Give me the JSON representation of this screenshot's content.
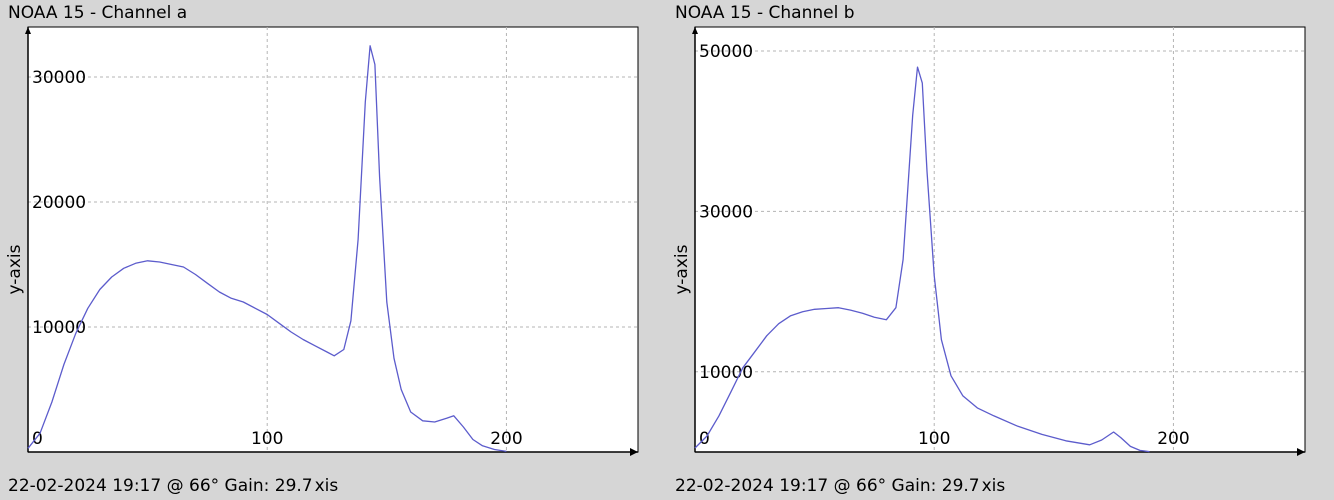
{
  "panels": [
    {
      "title": "NOAA 15 - Channel a",
      "footer": "22-02-2024 19:17 @ 66° Gain: 29.7",
      "footer_overlap": "xis"
    },
    {
      "title": "NOAA 15 - Channel b",
      "footer": "22-02-2024 19:17 @ 66° Gain: 29.7",
      "footer_overlap": "xis"
    }
  ],
  "chart_data": [
    {
      "type": "line",
      "title": "NOAA 15 - Channel a",
      "xlabel": "",
      "ylabel": "y-axis",
      "xlim": [
        0,
        255
      ],
      "ylim": [
        0,
        34000
      ],
      "xticks": [
        0,
        100,
        200
      ],
      "yticks": [
        10000,
        20000,
        30000
      ],
      "grid": true,
      "series": [
        {
          "color": "#5c5ccc",
          "x": [
            0,
            5,
            10,
            15,
            20,
            25,
            30,
            35,
            40,
            45,
            50,
            55,
            60,
            65,
            70,
            75,
            80,
            85,
            90,
            95,
            100,
            105,
            110,
            115,
            120,
            125,
            128,
            132,
            135,
            138,
            141,
            143,
            145,
            147,
            150,
            153,
            156,
            160,
            165,
            170,
            175,
            178,
            182,
            186,
            190,
            195,
            200
          ],
          "y": [
            300,
            1500,
            4000,
            7000,
            9500,
            11500,
            13000,
            14000,
            14700,
            15100,
            15300,
            15200,
            15000,
            14800,
            14200,
            13500,
            12800,
            12300,
            12000,
            11500,
            11000,
            10300,
            9600,
            9000,
            8500,
            8000,
            7700,
            8200,
            10500,
            17000,
            28000,
            32500,
            31000,
            22000,
            12000,
            7500,
            5000,
            3200,
            2500,
            2400,
            2700,
            2900,
            2000,
            1000,
            500,
            200,
            50
          ]
        }
      ]
    },
    {
      "type": "line",
      "title": "NOAA 15 - Channel b",
      "xlabel": "",
      "ylabel": "y-axis",
      "xlim": [
        0,
        255
      ],
      "ylim": [
        0,
        53000
      ],
      "xticks": [
        0,
        100,
        200
      ],
      "yticks": [
        10000,
        30000,
        50000
      ],
      "grid": true,
      "series": [
        {
          "color": "#5c5ccc",
          "x": [
            0,
            5,
            10,
            15,
            20,
            25,
            30,
            35,
            40,
            45,
            50,
            55,
            60,
            65,
            70,
            75,
            80,
            84,
            87,
            89,
            91,
            93,
            95,
            97,
            100,
            103,
            107,
            112,
            118,
            125,
            135,
            145,
            155,
            165,
            170,
            175,
            178,
            182,
            186,
            190
          ],
          "y": [
            500,
            2000,
            4500,
            7500,
            10500,
            12500,
            14500,
            16000,
            17000,
            17500,
            17800,
            17900,
            18000,
            17700,
            17300,
            16800,
            16500,
            18000,
            24000,
            33000,
            42000,
            48000,
            46000,
            35000,
            22000,
            14000,
            9500,
            7000,
            5500,
            4500,
            3200,
            2200,
            1400,
            900,
            1500,
            2500,
            1800,
            700,
            200,
            50
          ]
        }
      ]
    }
  ]
}
